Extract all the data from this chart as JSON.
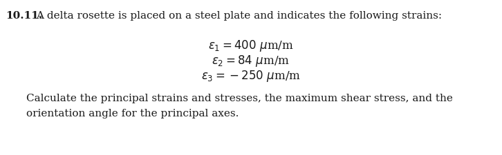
{
  "title_bold": "10.11.",
  "title_rest": "  A delta rosette is placed on a steel plate and indicates the following strains:",
  "eq1": "$\\epsilon_1 = 400\\ \\mu$m/m",
  "eq2": "$\\epsilon_2 = 84\\ \\mu$m/m",
  "eq3": "$\\epsilon_3 = -250\\ \\mu$m/m",
  "footer_line1": "Calculate the principal strains and stresses, the maximum shear stress, and the",
  "footer_line2": "orientation angle for the principal axes.",
  "bg_color": "#ffffff",
  "text_color": "#1a1a1a",
  "font_size_title": 11.0,
  "font_size_eq": 12.0,
  "font_size_footer": 11.0
}
